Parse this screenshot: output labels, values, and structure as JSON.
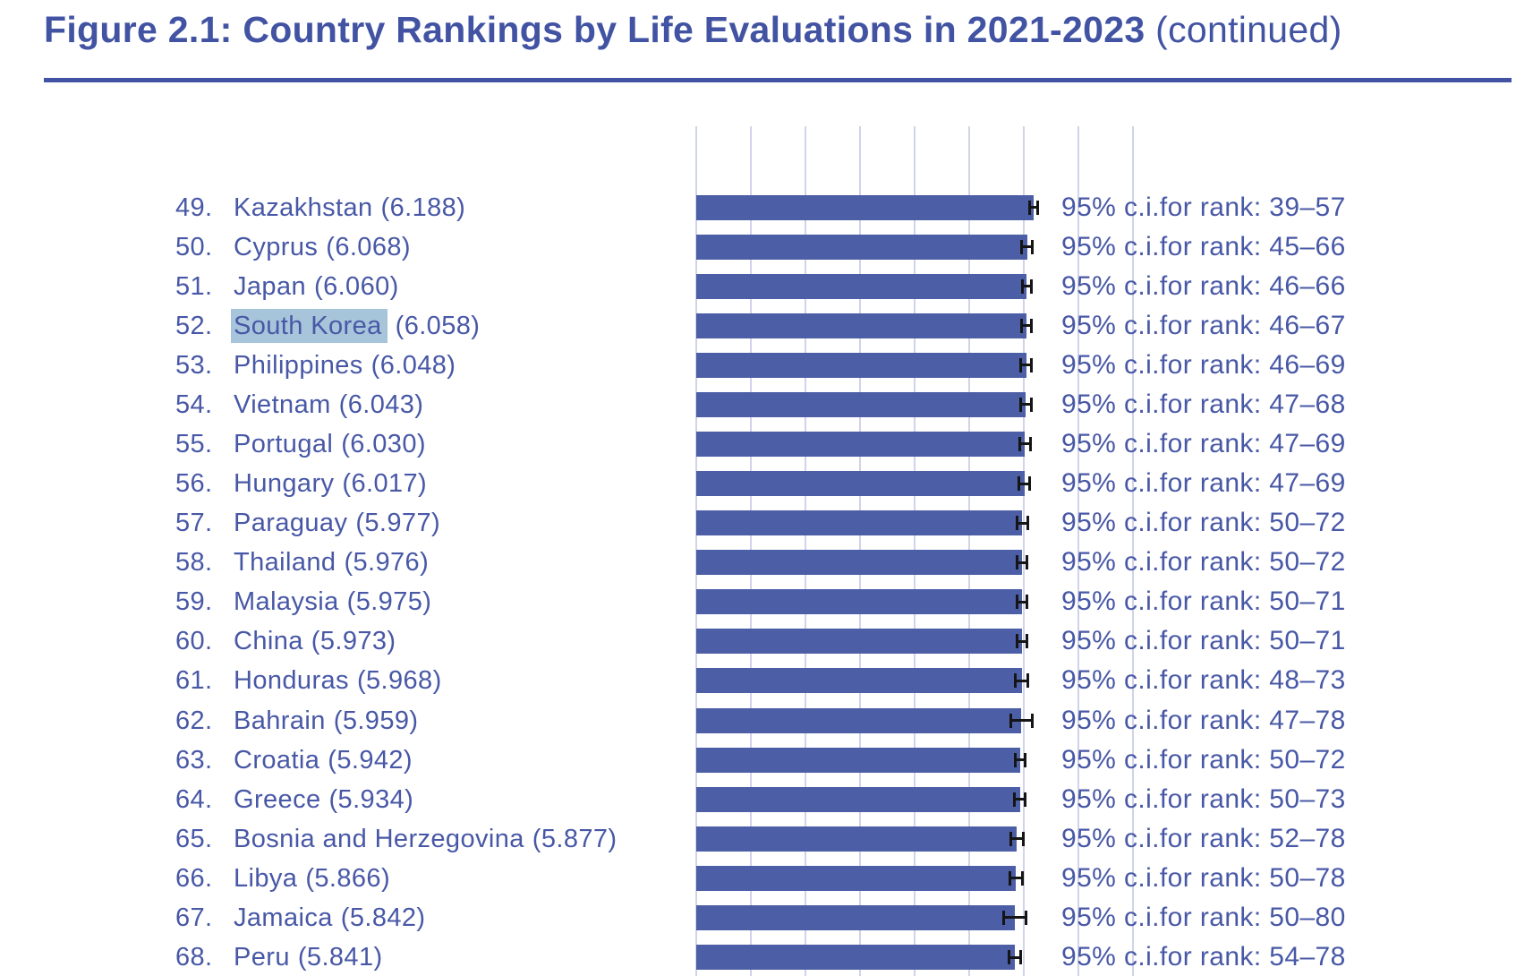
{
  "header": {
    "title_bold": "Figure 2.1: Country Rankings by Life Evaluations in 2021-2023",
    "title_suffix": " (continued)"
  },
  "colors": {
    "title": "#4153a2",
    "text": "#4858a6",
    "bar_fill": "#4c5ea6",
    "gridline": "#d0d3e9",
    "highlight": "#a6c4da",
    "error_bar": "#151515"
  },
  "chart_data": {
    "type": "bar",
    "orientation": "horizontal",
    "title": "Figure 2.1: Country Rankings by Life Evaluations in 2021-2023 (continued)",
    "value_description": "Life evaluation score (0-10 scale), 2021-2023 average",
    "axis": {
      "xlim": [
        0,
        8
      ],
      "gridline_interval": 1,
      "gridlines": [
        0,
        1,
        2,
        3,
        4,
        5,
        6,
        7,
        8
      ],
      "grid": true,
      "tick_labels_visible": false
    },
    "error_bars": "95% confidence interval of score, black caps at bar end",
    "rows": [
      {
        "rank": 49,
        "rank_label": "49.",
        "country": "Kazakhstan",
        "score": 6.188,
        "score_label": "(6.188)",
        "ci_rank_low": 39,
        "ci_rank_high": 57,
        "ci_text": "95% c.i.for rank: 39–57",
        "score_ci_halfwidth_est": 0.1,
        "highlighted": false
      },
      {
        "rank": 50,
        "rank_label": "50.",
        "country": "Cyprus",
        "score": 6.068,
        "score_label": "(6.068)",
        "ci_rank_low": 45,
        "ci_rank_high": 66,
        "ci_text": "95% c.i.for rank: 45–66",
        "score_ci_halfwidth_est": 0.12,
        "highlighted": false
      },
      {
        "rank": 51,
        "rank_label": "51.",
        "country": "Japan",
        "score": 6.06,
        "score_label": "(6.060)",
        "ci_rank_low": 46,
        "ci_rank_high": 66,
        "ci_text": "95% c.i.for rank: 46–66",
        "score_ci_halfwidth_est": 0.11,
        "highlighted": false
      },
      {
        "rank": 52,
        "rank_label": "52.",
        "country": "South Korea",
        "score": 6.058,
        "score_label": "(6.058)",
        "ci_rank_low": 46,
        "ci_rank_high": 67,
        "ci_text": "95% c.i.for rank: 46–67",
        "score_ci_halfwidth_est": 0.11,
        "highlighted": true
      },
      {
        "rank": 53,
        "rank_label": "53.",
        "country": "Philippines",
        "score": 6.048,
        "score_label": "(6.048)",
        "ci_rank_low": 46,
        "ci_rank_high": 69,
        "ci_text": "95% c.i.for rank: 46–69",
        "score_ci_halfwidth_est": 0.13,
        "highlighted": false
      },
      {
        "rank": 54,
        "rank_label": "54.",
        "country": "Vietnam",
        "score": 6.043,
        "score_label": "(6.043)",
        "ci_rank_low": 47,
        "ci_rank_high": 68,
        "ci_text": "95% c.i.for rank: 47–68",
        "score_ci_halfwidth_est": 0.12,
        "highlighted": false
      },
      {
        "rank": 55,
        "rank_label": "55.",
        "country": "Portugal",
        "score": 6.03,
        "score_label": "(6.030)",
        "ci_rank_low": 47,
        "ci_rank_high": 69,
        "ci_text": "95% c.i.for rank: 47–69",
        "score_ci_halfwidth_est": 0.12,
        "highlighted": false
      },
      {
        "rank": 56,
        "rank_label": "56.",
        "country": "Hungary",
        "score": 6.017,
        "score_label": "(6.017)",
        "ci_rank_low": 47,
        "ci_rank_high": 69,
        "ci_text": "95% c.i.for rank: 47–69",
        "score_ci_halfwidth_est": 0.12,
        "highlighted": false
      },
      {
        "rank": 57,
        "rank_label": "57.",
        "country": "Paraguay",
        "score": 5.977,
        "score_label": "(5.977)",
        "ci_rank_low": 50,
        "ci_rank_high": 72,
        "ci_text": "95% c.i.for rank: 50–72",
        "score_ci_halfwidth_est": 0.12,
        "highlighted": false
      },
      {
        "rank": 58,
        "rank_label": "58.",
        "country": "Thailand",
        "score": 5.976,
        "score_label": "(5.976)",
        "ci_rank_low": 50,
        "ci_rank_high": 72,
        "ci_text": "95% c.i.for rank: 50–72",
        "score_ci_halfwidth_est": 0.12,
        "highlighted": false
      },
      {
        "rank": 59,
        "rank_label": "59.",
        "country": "Malaysia",
        "score": 5.975,
        "score_label": "(5.975)",
        "ci_rank_low": 50,
        "ci_rank_high": 71,
        "ci_text": "95% c.i.for rank: 50–71",
        "score_ci_halfwidth_est": 0.12,
        "highlighted": false
      },
      {
        "rank": 60,
        "rank_label": "60.",
        "country": "China",
        "score": 5.973,
        "score_label": "(5.973)",
        "ci_rank_low": 50,
        "ci_rank_high": 71,
        "ci_text": "95% c.i.for rank: 50–71",
        "score_ci_halfwidth_est": 0.11,
        "highlighted": false
      },
      {
        "rank": 61,
        "rank_label": "61.",
        "country": "Honduras",
        "score": 5.968,
        "score_label": "(5.968)",
        "ci_rank_low": 48,
        "ci_rank_high": 73,
        "ci_text": "95% c.i.for rank: 48–73",
        "score_ci_halfwidth_est": 0.14,
        "highlighted": false
      },
      {
        "rank": 62,
        "rank_label": "62.",
        "country": "Bahrain",
        "score": 5.959,
        "score_label": "(5.959)",
        "ci_rank_low": 47,
        "ci_rank_high": 78,
        "ci_text": "95% c.i.for rank: 47–78",
        "score_ci_halfwidth_est": 0.22,
        "highlighted": false
      },
      {
        "rank": 63,
        "rank_label": "63.",
        "country": "Croatia",
        "score": 5.942,
        "score_label": "(5.942)",
        "ci_rank_low": 50,
        "ci_rank_high": 72,
        "ci_text": "95% c.i.for rank: 50–72",
        "score_ci_halfwidth_est": 0.12,
        "highlighted": false
      },
      {
        "rank": 64,
        "rank_label": "64.",
        "country": "Greece",
        "score": 5.934,
        "score_label": "(5.934)",
        "ci_rank_low": 50,
        "ci_rank_high": 73,
        "ci_text": "95% c.i.for rank: 50–73",
        "score_ci_halfwidth_est": 0.12,
        "highlighted": false
      },
      {
        "rank": 65,
        "rank_label": "65.",
        "country": "Bosnia and Herzegovina",
        "score": 5.877,
        "score_label": "(5.877)",
        "ci_rank_low": 52,
        "ci_rank_high": 78,
        "ci_text": "95% c.i.for rank: 52–78",
        "score_ci_halfwidth_est": 0.14,
        "highlighted": false
      },
      {
        "rank": 66,
        "rank_label": "66.",
        "country": "Libya",
        "score": 5.866,
        "score_label": "(5.866)",
        "ci_rank_low": 50,
        "ci_rank_high": 78,
        "ci_text": "95% c.i.for rank: 50–78",
        "score_ci_halfwidth_est": 0.14,
        "highlighted": false
      },
      {
        "rank": 67,
        "rank_label": "67.",
        "country": "Jamaica",
        "score": 5.842,
        "score_label": "(5.842)",
        "ci_rank_low": 50,
        "ci_rank_high": 80,
        "ci_text": "95% c.i.for rank: 50–80",
        "score_ci_halfwidth_est": 0.23,
        "highlighted": false
      },
      {
        "rank": 68,
        "rank_label": "68.",
        "country": "Peru",
        "score": 5.841,
        "score_label": "(5.841)",
        "ci_rank_low": 54,
        "ci_rank_high": 78,
        "ci_text": "95% c.i.for rank: 54–78",
        "score_ci_halfwidth_est": 0.13,
        "highlighted": false
      }
    ]
  }
}
